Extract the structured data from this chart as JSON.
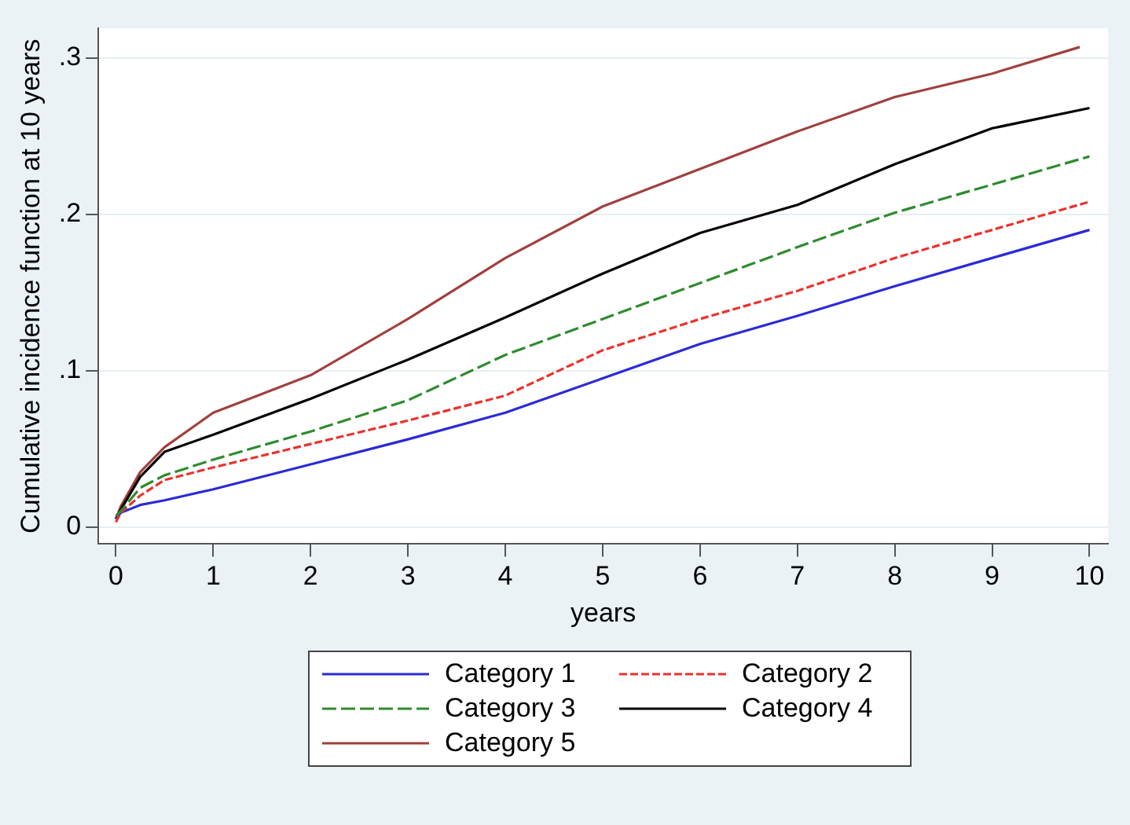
{
  "chart_data": {
    "type": "line",
    "xlabel": "years",
    "ylabel": "Cumulative incidence function at 10 years",
    "x": [
      0,
      0.05,
      0.25,
      0.5,
      1,
      2,
      3,
      4,
      5,
      6,
      7,
      8,
      9,
      10
    ],
    "xlim": [
      -0.18,
      10.19
    ],
    "xticks": [
      0,
      1,
      2,
      3,
      4,
      5,
      6,
      7,
      8,
      9,
      10
    ],
    "ylim": [
      -0.011,
      0.319
    ],
    "yticks": [
      {
        "value": 0,
        "label": "0"
      },
      {
        "value": 0.1,
        "label": ".1"
      },
      {
        "value": 0.2,
        "label": ".2"
      },
      {
        "value": 0.3,
        "label": ".3"
      }
    ],
    "grid": "y",
    "legend": "bottom",
    "marker": "none",
    "series": [
      {
        "name": "Category 1",
        "color": "#2a2ad8",
        "line_style": "solid",
        "values": [
          0.005,
          0.009,
          0.014,
          0.017,
          0.024,
          0.04,
          0.056,
          0.073,
          0.095,
          0.117,
          0.135,
          0.154,
          0.172,
          0.19
        ]
      },
      {
        "name": "Category 2",
        "color": "#e8332e",
        "line_style": "dashed",
        "values": [
          0.003,
          0.009,
          0.02,
          0.03,
          0.038,
          0.053,
          0.068,
          0.084,
          0.113,
          0.133,
          0.151,
          0.172,
          0.19,
          0.208
        ]
      },
      {
        "name": "Category 3",
        "color": "#2e8b2e",
        "line_style": "dashed",
        "values": [
          0.007,
          0.01,
          0.025,
          0.033,
          0.043,
          0.061,
          0.081,
          0.11,
          0.133,
          0.156,
          0.179,
          0.201,
          0.219,
          0.237
        ]
      },
      {
        "name": "Category 4",
        "color": "#000000",
        "line_style": "solid",
        "values": [
          0.005,
          0.011,
          0.032,
          0.048,
          0.059,
          0.082,
          0.107,
          0.134,
          0.162,
          0.188,
          0.206,
          0.232,
          0.255,
          0.268
        ]
      },
      {
        "name": "Category 5",
        "color": "#a0403e",
        "line_style": "solid",
        "x": [
          0,
          0.05,
          0.25,
          0.5,
          1,
          2,
          3,
          4,
          5,
          6,
          7,
          8,
          9,
          9.9
        ],
        "values": [
          0.005,
          0.013,
          0.035,
          0.051,
          0.073,
          0.097,
          0.133,
          0.172,
          0.205,
          0.229,
          0.253,
          0.275,
          0.29,
          0.307
        ]
      }
    ]
  }
}
